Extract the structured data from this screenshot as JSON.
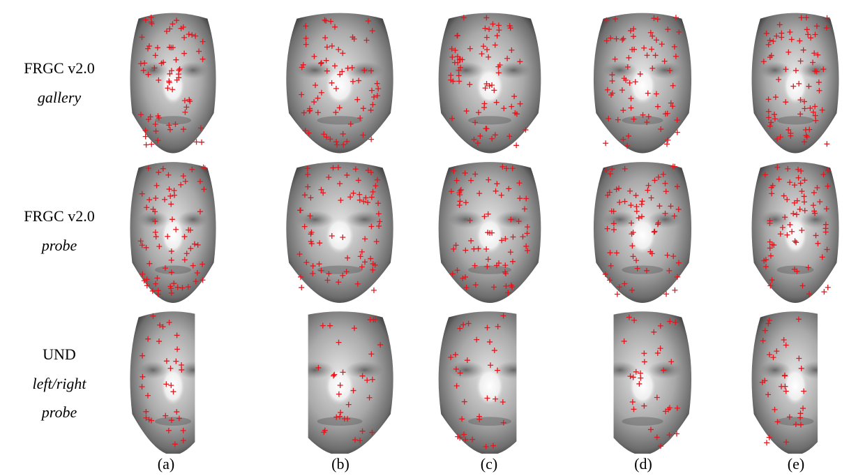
{
  "rows": [
    {
      "main": "FRGC v2.0",
      "sub": "gallery"
    },
    {
      "main": "FRGC v2.0",
      "sub": "probe"
    },
    {
      "main": "UND",
      "sub": "left/right",
      "sub2": "probe"
    }
  ],
  "columns": [
    "(a)",
    "(b)",
    "(c)",
    "(d)",
    "(e)"
  ],
  "colors": {
    "marker": "#e8141c",
    "background": "#ffffff"
  },
  "faces": [
    {
      "row": 0,
      "col": 0,
      "crop": "none"
    },
    {
      "row": 0,
      "col": 1,
      "crop": "none"
    },
    {
      "row": 0,
      "col": 2,
      "crop": "none"
    },
    {
      "row": 0,
      "col": 3,
      "crop": "none"
    },
    {
      "row": 0,
      "col": 4,
      "crop": "none"
    },
    {
      "row": 1,
      "col": 0,
      "crop": "none"
    },
    {
      "row": 1,
      "col": 1,
      "crop": "none"
    },
    {
      "row": 1,
      "col": 2,
      "crop": "none"
    },
    {
      "row": 1,
      "col": 3,
      "crop": "none"
    },
    {
      "row": 1,
      "col": 4,
      "crop": "none"
    },
    {
      "row": 2,
      "col": 0,
      "crop": "right"
    },
    {
      "row": 2,
      "col": 1,
      "crop": "left"
    },
    {
      "row": 2,
      "col": 2,
      "crop": "right"
    },
    {
      "row": 2,
      "col": 3,
      "crop": "left"
    },
    {
      "row": 2,
      "col": 4,
      "crop": "right"
    }
  ]
}
